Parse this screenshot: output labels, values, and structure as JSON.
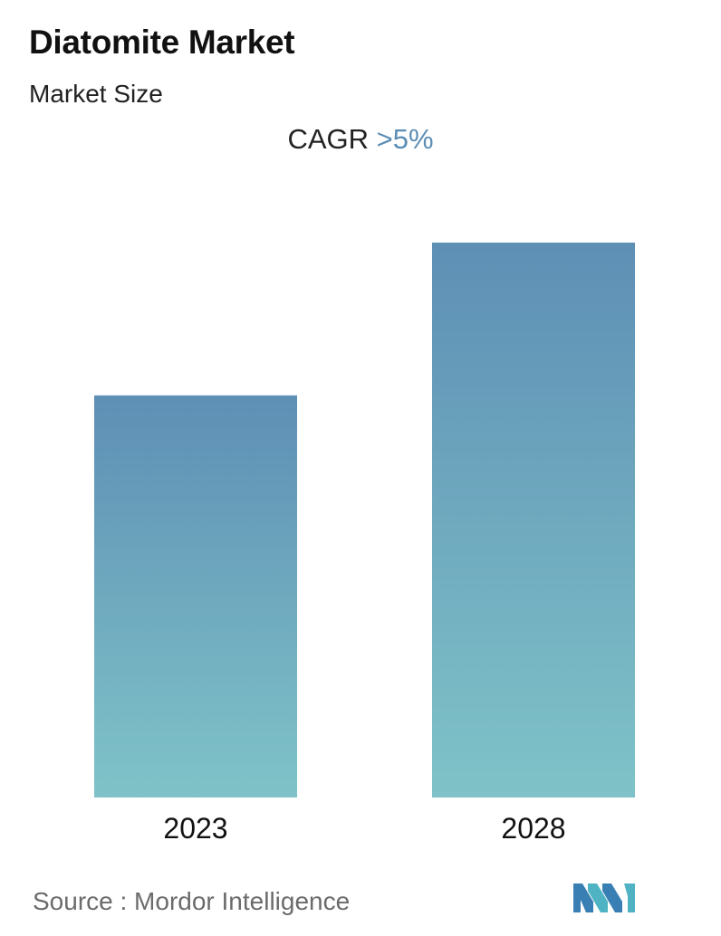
{
  "header": {
    "title": "Diatomite Market",
    "subtitle": "Market Size",
    "cagr_label": "CAGR",
    "cagr_value": ">5%"
  },
  "chart_data": {
    "type": "bar",
    "categories": [
      "2023",
      "2028"
    ],
    "values": [
      1.0,
      1.38
    ],
    "ylim": [
      0,
      1.38
    ],
    "grid": false,
    "colors": {
      "bar_top": "#5e8fb5",
      "bar_bottom": "#7fc3c8",
      "cagr_accent": "#5b8db5"
    }
  },
  "footer": {
    "source": "Source :  Mordor Intelligence",
    "logo_icon": "mordor-intelligence-logo-icon"
  }
}
